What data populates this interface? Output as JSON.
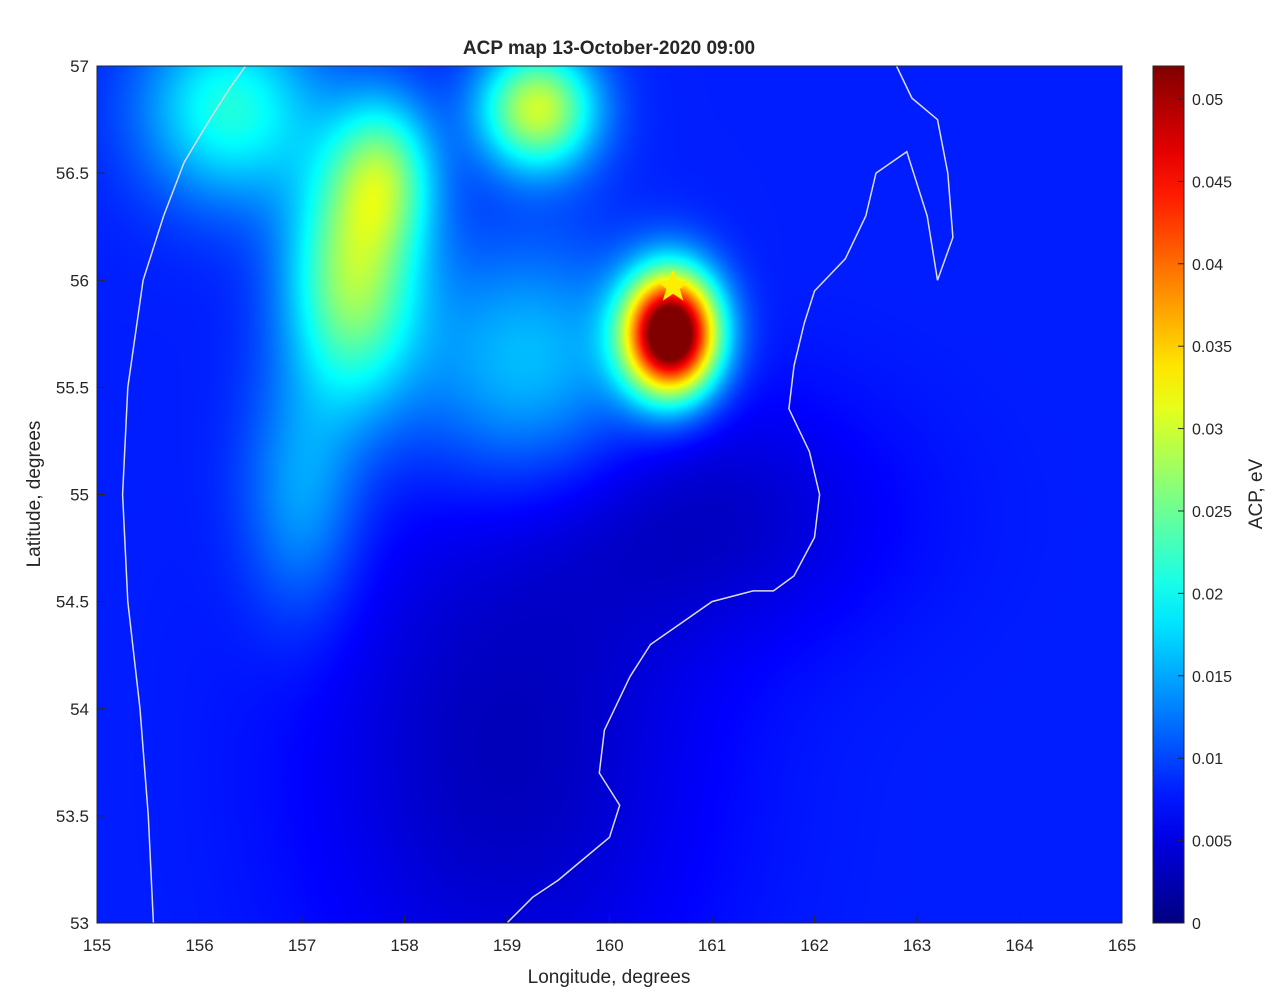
{
  "chart_data": {
    "type": "heatmap",
    "title": "ACP map 13-October-2020 09:00",
    "xlabel": "Longitude, degrees",
    "ylabel": "Latitude, degrees",
    "xlim": [
      155,
      165
    ],
    "ylim": [
      53,
      57
    ],
    "xticks": [
      "155",
      "156",
      "157",
      "158",
      "159",
      "160",
      "161",
      "162",
      "163",
      "164",
      "165"
    ],
    "yticks": [
      "53",
      "53.5",
      "54",
      "54.5",
      "55",
      "55.5",
      "56",
      "56.5",
      "57"
    ],
    "colorbar": {
      "label": "ACP, eV",
      "range": [
        0,
        0.052
      ],
      "ticks": [
        "0",
        "0.005",
        "0.01",
        "0.015",
        "0.02",
        "0.025",
        "0.03",
        "0.035",
        "0.04",
        "0.045",
        "0.05"
      ],
      "colormap": "jet"
    },
    "background_value": 0.008,
    "anomalies": [
      {
        "lon": 160.6,
        "lat": 55.75,
        "peak": 0.052,
        "sigma_lon": 0.32,
        "sigma_lat": 0.2
      },
      {
        "lon": 159.3,
        "lat": 56.8,
        "peak": 0.022,
        "sigma_lon": 0.4,
        "sigma_lat": 0.2
      },
      {
        "lon": 157.5,
        "lat": 56.0,
        "peak": 0.019,
        "sigma_lon": 0.45,
        "sigma_lat": 0.4
      },
      {
        "lon": 157.8,
        "lat": 56.5,
        "peak": 0.014,
        "sigma_lon": 0.35,
        "sigma_lat": 0.25
      },
      {
        "lon": 156.3,
        "lat": 56.8,
        "peak": 0.013,
        "sigma_lon": 0.6,
        "sigma_lat": 0.3
      },
      {
        "lon": 159.2,
        "lat": 55.6,
        "peak": 0.009,
        "sigma_lon": 0.8,
        "sigma_lat": 0.4
      },
      {
        "lon": 157.0,
        "lat": 55.0,
        "peak": 0.007,
        "sigma_lon": 0.4,
        "sigma_lat": 0.4
      },
      {
        "lon": 159.0,
        "lat": 53.8,
        "peak": -0.005,
        "sigma_lon": 1.3,
        "sigma_lat": 0.9
      },
      {
        "lon": 161.0,
        "lat": 54.9,
        "peak": -0.004,
        "sigma_lon": 1.2,
        "sigma_lat": 0.4
      }
    ],
    "epicenter": {
      "lon": 160.62,
      "lat": 55.97,
      "marker": "star",
      "color": "#ffee00"
    },
    "coastline": [
      [
        [
          155.55,
          53.0
        ],
        [
          155.5,
          53.5
        ],
        [
          155.42,
          54.0
        ],
        [
          155.3,
          54.5
        ],
        [
          155.25,
          55.0
        ],
        [
          155.3,
          55.5
        ],
        [
          155.45,
          56.0
        ],
        [
          155.65,
          56.3
        ],
        [
          155.85,
          56.55
        ],
        [
          156.1,
          56.75
        ],
        [
          156.3,
          56.9
        ],
        [
          156.45,
          57.0
        ]
      ],
      [
        [
          159.0,
          53.0
        ],
        [
          159.25,
          53.12
        ],
        [
          159.5,
          53.2
        ],
        [
          159.7,
          53.28
        ],
        [
          160.0,
          53.4
        ],
        [
          160.1,
          53.55
        ],
        [
          159.9,
          53.7
        ],
        [
          159.95,
          53.9
        ],
        [
          160.2,
          54.15
        ],
        [
          160.4,
          54.3
        ],
        [
          160.7,
          54.4
        ],
        [
          161.0,
          54.5
        ],
        [
          161.4,
          54.55
        ],
        [
          161.6,
          54.55
        ],
        [
          161.8,
          54.62
        ],
        [
          162.0,
          54.8
        ],
        [
          162.05,
          55.0
        ],
        [
          161.95,
          55.2
        ],
        [
          161.75,
          55.4
        ],
        [
          161.8,
          55.6
        ],
        [
          161.9,
          55.8
        ],
        [
          162.0,
          55.95
        ],
        [
          162.3,
          56.1
        ],
        [
          162.5,
          56.3
        ],
        [
          162.6,
          56.5
        ],
        [
          162.9,
          56.6
        ],
        [
          163.1,
          56.3
        ],
        [
          163.2,
          56.0
        ],
        [
          163.35,
          56.2
        ],
        [
          163.3,
          56.5
        ],
        [
          163.2,
          56.75
        ],
        [
          162.95,
          56.85
        ],
        [
          162.8,
          57.0
        ]
      ]
    ]
  }
}
